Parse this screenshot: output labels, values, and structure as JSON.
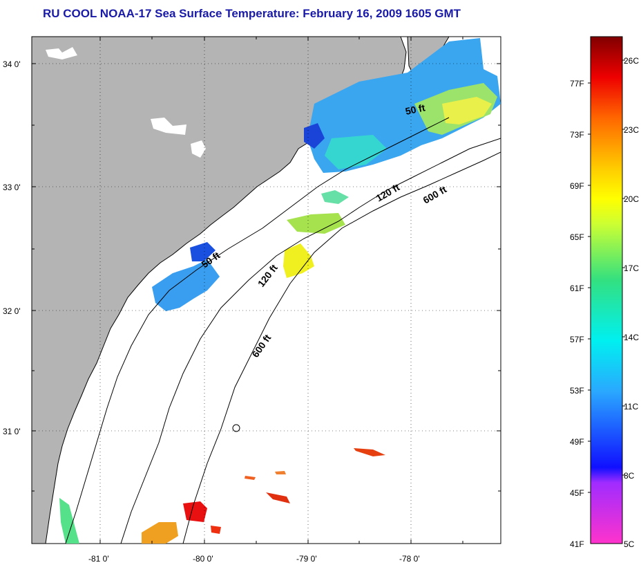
{
  "title": "RU COOL  NOAA-17  Sea Surface Temperature:  February 16, 2009 1605 GMT",
  "map": {
    "lat_ticks": [
      "34 0'",
      "33 0'",
      "32 0'",
      "31 0'"
    ],
    "lon_ticks": [
      "-81 0'",
      "-80 0'",
      "-79 0'",
      "-78 0'"
    ],
    "contour_labels": [
      {
        "text": "50 ft"
      },
      {
        "text": "50 ft"
      },
      {
        "text": "120 ft"
      },
      {
        "text": "120 ft"
      },
      {
        "text": "600 ft"
      },
      {
        "text": "600 ft"
      }
    ]
  },
  "colorbar": {
    "fahrenheit_labels": [
      "77F",
      "73F",
      "69F",
      "65F",
      "61F",
      "57F",
      "53F",
      "49F",
      "45F",
      "41F"
    ],
    "celsius_labels": [
      "26C",
      "23C",
      "20C",
      "17C",
      "14C",
      "11C",
      "8C",
      "5C"
    ]
  },
  "colors": {
    "title": "#1a1aa8",
    "land": "#b4b4b4",
    "ocean": "#ffffff"
  }
}
